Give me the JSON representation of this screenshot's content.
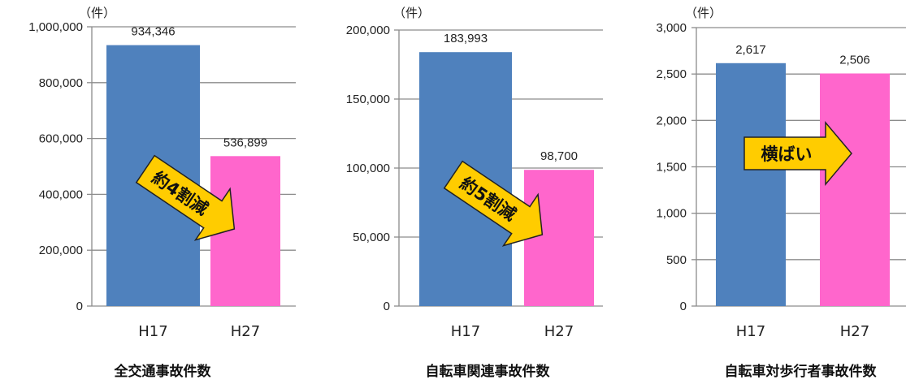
{
  "chart_data": [
    {
      "type": "bar",
      "title": "全交通事故件数",
      "unit_label": "（件）",
      "categories": [
        "H17",
        "H27"
      ],
      "values": [
        934346,
        536899
      ],
      "value_labels": [
        "934,346",
        "536,899"
      ],
      "bar_colors": [
        "#4f81bd",
        "#ff66cc"
      ],
      "ylim": [
        0,
        1000000
      ],
      "yticks": [
        0,
        200000,
        400000,
        600000,
        800000,
        1000000
      ],
      "ytick_labels": [
        "0",
        "200,000",
        "400,000",
        "600,000",
        "800,000",
        "1,000,000"
      ],
      "grid": true,
      "annotation": {
        "text": "約4割減",
        "direction": "down"
      }
    },
    {
      "type": "bar",
      "title": "自転車関連事故件数",
      "unit_label": "（件）",
      "categories": [
        "H17",
        "H27"
      ],
      "values": [
        183993,
        98700
      ],
      "value_labels": [
        "183,993",
        "98,700"
      ],
      "bar_colors": [
        "#4f81bd",
        "#ff66cc"
      ],
      "ylim": [
        0,
        200000
      ],
      "yticks": [
        0,
        50000,
        100000,
        150000,
        200000
      ],
      "ytick_labels": [
        "0",
        "50,000",
        "100,000",
        "150,000",
        "200,000"
      ],
      "grid": true,
      "annotation": {
        "text": "約5割減",
        "direction": "down"
      }
    },
    {
      "type": "bar",
      "title": "自転車対歩行者事故件数",
      "unit_label": "（件）",
      "categories": [
        "H17",
        "H27"
      ],
      "values": [
        2617,
        2506
      ],
      "value_labels": [
        "2,617",
        "2,506"
      ],
      "bar_colors": [
        "#4f81bd",
        "#ff66cc"
      ],
      "ylim": [
        0,
        3000
      ],
      "yticks": [
        0,
        500,
        1000,
        1500,
        2000,
        2500,
        3000
      ],
      "ytick_labels": [
        "0",
        "500",
        "1,000",
        "1,500",
        "2,000",
        "2,500",
        "3,000"
      ],
      "grid": true,
      "annotation": {
        "text": "横ばい",
        "direction": "flat"
      }
    }
  ],
  "colors": {
    "arrow_fill": "#ffcc00",
    "arrow_stroke": "#222222",
    "grid": "#8c8c8c",
    "axis": "#8c8c8c"
  }
}
